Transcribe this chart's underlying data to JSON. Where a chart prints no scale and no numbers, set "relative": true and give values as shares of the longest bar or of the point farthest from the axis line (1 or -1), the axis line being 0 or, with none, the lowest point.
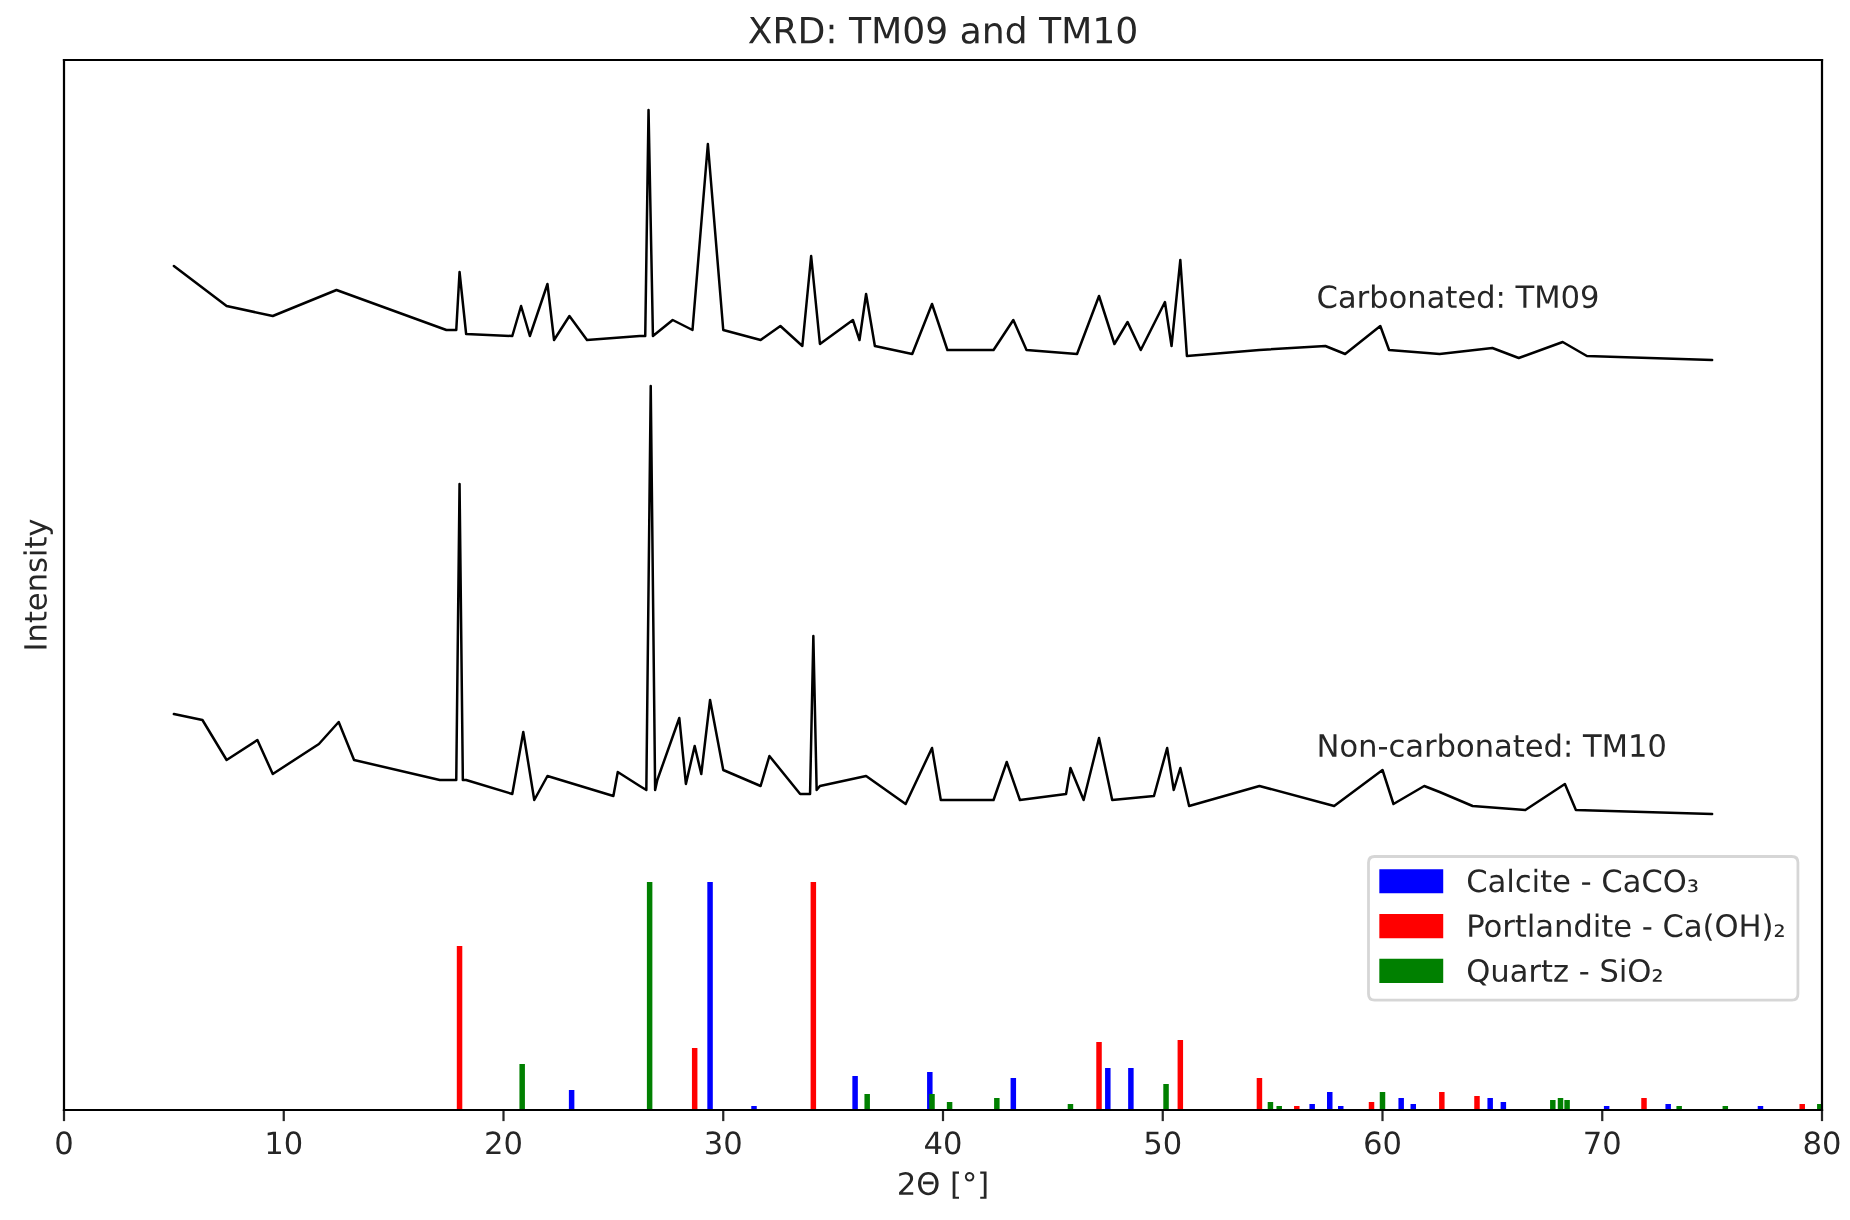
{
  "chart_data": {
    "type": "line",
    "title": "XRD: TM09 and TM10",
    "xlabel": "2Θ [°]",
    "ylabel": "Intensity",
    "relative": true,
    "xlim": [
      0,
      80
    ],
    "xticks": [
      0,
      10,
      20,
      30,
      40,
      50,
      60,
      70,
      80
    ],
    "legend": "bottom right",
    "grid": false,
    "series": [
      {
        "name": "Carbonated: TM09",
        "color": "#000000",
        "x": [
          5.0,
          7.4,
          9.5,
          12.4,
          14.4,
          17.4,
          17.85,
          18.0,
          18.3,
          20.4,
          20.8,
          21.2,
          22.0,
          22.3,
          23.0,
          23.8,
          26.2,
          26.45,
          26.6,
          26.8,
          27.7,
          28.6,
          29.3,
          30.0,
          31.7,
          32.6,
          33.6,
          34.0,
          34.4,
          35.9,
          36.2,
          36.5,
          36.9,
          38.6,
          39.5,
          40.2,
          42.3,
          43.2,
          43.8,
          46.1,
          47.1,
          47.8,
          48.4,
          49.0,
          50.1,
          50.4,
          50.8,
          51.1,
          54.4,
          57.4,
          58.3,
          59.9,
          60.3,
          62.6,
          65.0,
          66.2,
          68.2,
          69.3,
          75.0
        ],
        "values": [
          0.844,
          0.804,
          0.794,
          0.82,
          0.804,
          0.78,
          0.78,
          0.838,
          0.776,
          0.774,
          0.804,
          0.774,
          0.826,
          0.77,
          0.794,
          0.77,
          0.774,
          0.774,
          1.0,
          0.774,
          0.79,
          0.78,
          0.966,
          0.78,
          0.77,
          0.784,
          0.764,
          0.854,
          0.766,
          0.79,
          0.77,
          0.816,
          0.764,
          0.756,
          0.806,
          0.76,
          0.76,
          0.79,
          0.76,
          0.756,
          0.814,
          0.766,
          0.788,
          0.76,
          0.808,
          0.764,
          0.85,
          0.754,
          0.76,
          0.764,
          0.756,
          0.784,
          0.76,
          0.756,
          0.762,
          0.752,
          0.768,
          0.754,
          0.75
        ]
      },
      {
        "name": "Non-carbonated: TM10",
        "color": "#000000",
        "x": [
          5.0,
          6.3,
          7.4,
          8.8,
          9.5,
          11.6,
          12.5,
          13.2,
          17.1,
          17.85,
          18.0,
          18.15,
          18.3,
          20.4,
          20.9,
          21.4,
          22.0,
          25.0,
          25.2,
          26.2,
          26.5,
          26.7,
          26.9,
          27.0,
          28.0,
          28.3,
          28.7,
          29.0,
          29.4,
          30.0,
          31.7,
          32.1,
          33.5,
          33.95,
          34.1,
          34.25,
          34.4,
          36.5,
          38.3,
          39.5,
          39.9,
          42.3,
          42.9,
          43.5,
          45.6,
          45.8,
          46.4,
          47.1,
          47.7,
          49.6,
          50.2,
          50.5,
          50.8,
          51.2,
          54.4,
          57.8,
          60.0,
          60.5,
          61.9,
          62.6,
          64.1,
          66.5,
          68.3,
          68.8,
          75.0
        ],
        "values": [
          0.396,
          0.39,
          0.35,
          0.37,
          0.336,
          0.366,
          0.388,
          0.35,
          0.33,
          0.33,
          0.626,
          0.33,
          0.33,
          0.316,
          0.378,
          0.31,
          0.334,
          0.314,
          0.338,
          0.324,
          0.32,
          0.724,
          0.32,
          0.33,
          0.392,
          0.326,
          0.364,
          0.336,
          0.41,
          0.34,
          0.324,
          0.354,
          0.316,
          0.316,
          0.474,
          0.32,
          0.324,
          0.334,
          0.306,
          0.362,
          0.31,
          0.31,
          0.348,
          0.31,
          0.316,
          0.342,
          0.31,
          0.372,
          0.31,
          0.314,
          0.362,
          0.32,
          0.342,
          0.304,
          0.324,
          0.304,
          0.34,
          0.306,
          0.324,
          0.318,
          0.304,
          0.3,
          0.326,
          0.3,
          0.296
        ]
      },
      {
        "name": "Calcite - CaCO₃",
        "type": "bar",
        "color": "#0000ff",
        "x": [
          23.1,
          29.4,
          31.4,
          36.0,
          39.4,
          43.2,
          47.5,
          48.55,
          56.8,
          57.6,
          58.1,
          60.85,
          61.4,
          64.9,
          65.5,
          70.2,
          73.0,
          77.2
        ],
        "values": [
          0.02,
          0.228,
          0.004,
          0.034,
          0.038,
          0.032,
          0.042,
          0.042,
          0.006,
          0.018,
          0.004,
          0.012,
          0.006,
          0.012,
          0.008,
          0.004,
          0.006,
          0.004
        ]
      },
      {
        "name": "Portlandite - Ca(OH)₂",
        "type": "bar",
        "color": "#ff0000",
        "x": [
          18.0,
          28.7,
          34.1,
          47.1,
          50.8,
          54.4,
          56.1,
          59.5,
          62.7,
          64.3,
          71.9,
          79.1
        ],
        "values": [
          0.164,
          0.062,
          0.228,
          0.068,
          0.07,
          0.032,
          0.004,
          0.008,
          0.018,
          0.014,
          0.012,
          0.006
        ]
      },
      {
        "name": "Quartz - SiO₂",
        "type": "bar",
        "color": "#008000",
        "x": [
          20.85,
          26.65,
          36.55,
          39.5,
          40.3,
          42.45,
          45.8,
          50.15,
          54.9,
          55.3,
          60.0,
          67.75,
          68.1,
          68.4,
          73.5,
          75.6,
          79.9
        ],
        "values": [
          0.046,
          0.228,
          0.016,
          0.016,
          0.008,
          0.012,
          0.006,
          0.026,
          0.008,
          0.004,
          0.018,
          0.01,
          0.012,
          0.01,
          0.004,
          0.004,
          0.006
        ]
      }
    ]
  }
}
